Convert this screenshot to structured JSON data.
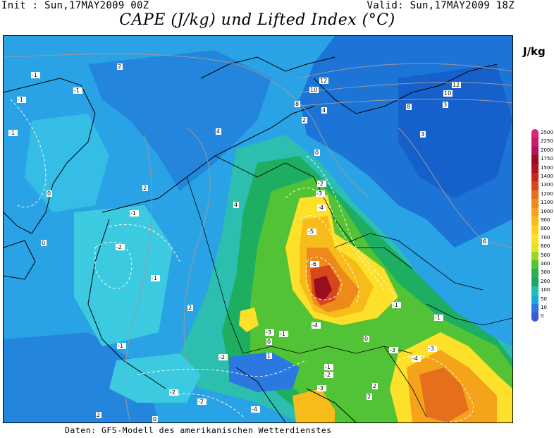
{
  "header": {
    "init": "Init : Sun,17MAY2009 00Z",
    "valid": "Valid: Sun,17MAY2009 18Z",
    "title": "CAPE (J/kg) und Lifted Index (°C)"
  },
  "legend": {
    "unit": "J/kg",
    "levels": [
      "2500",
      "2250",
      "2000",
      "1750",
      "1500",
      "1400",
      "1300",
      "1200",
      "1100",
      "1000",
      "900",
      "800",
      "700",
      "600",
      "500",
      "400",
      "300",
      "200",
      "100",
      "50",
      "10",
      "0"
    ],
    "colors": [
      "#e0207a",
      "#c81a6a",
      "#b4145c",
      "#9a0d1e",
      "#b2141c",
      "#c8281c",
      "#d8461c",
      "#e56f1c",
      "#ee8a1a",
      "#f5a31a",
      "#f8bc1a",
      "#fbd01c",
      "#fde02a",
      "#e6e41c",
      "#9ed61e",
      "#53c234",
      "#27b14a",
      "#1aa860",
      "#1ec2a8",
      "#1aa8e0",
      "#2a78e0",
      "#3a5ad6"
    ]
  },
  "map": {
    "contour_labels": [
      "-1",
      "-1",
      "-1",
      "-1",
      "-1",
      "-1",
      "-1",
      "-1",
      "-1",
      "-1",
      "-1",
      "-2",
      "-2",
      "-2",
      "-2",
      "-2",
      "-2",
      "-3",
      "-3",
      "-3",
      "-3",
      "-3",
      "-4",
      "-4",
      "-4",
      "-4",
      "-5",
      "-6",
      "0",
      "0",
      "0",
      "0",
      "0",
      "0",
      "1",
      "2",
      "2",
      "2",
      "2",
      "2",
      "2",
      "2",
      "3",
      "3",
      "4",
      "4",
      "4",
      "6",
      "8",
      "8",
      "10",
      "10",
      "12",
      "12"
    ]
  },
  "footer": {
    "source": "Daten: GFS-Modell des amerikanischen Wetterdienstes"
  }
}
